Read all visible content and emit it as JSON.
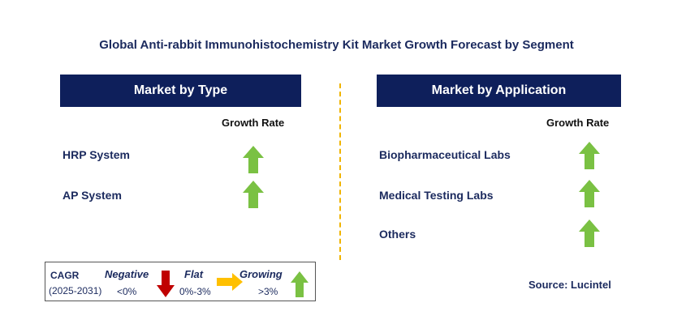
{
  "title": "Global Anti-rabbit Immunohistochemistry Kit Market Growth Forecast by Segment",
  "left_panel": {
    "header": "Market by Type",
    "growth_rate_label": "Growth Rate",
    "rows": [
      {
        "label": "HRP System",
        "trend": "growing"
      },
      {
        "label": "AP System",
        "trend": "growing"
      }
    ]
  },
  "right_panel": {
    "header": "Market by Application",
    "growth_rate_label": "Growth Rate",
    "rows": [
      {
        "label": "Biopharmaceutical Labs",
        "trend": "growing"
      },
      {
        "label": "Medical Testing Labs",
        "trend": "growing"
      },
      {
        "label": "Others",
        "trend": "growing"
      }
    ]
  },
  "legend": {
    "cagr": "CAGR",
    "period": "(2025-2031)",
    "negative": {
      "label": "Negative",
      "range": "<0%",
      "icon": "red-down-arrow-icon",
      "color": "#c00000"
    },
    "flat": {
      "label": "Flat",
      "range": "0%-3%",
      "icon": "yellow-right-arrow-icon",
      "color": "#ffc000"
    },
    "growing": {
      "label": "Growing",
      "range": ">3%",
      "icon": "green-up-arrow-icon",
      "color": "#7ac143"
    }
  },
  "source": "Source: Lucintel",
  "colors": {
    "header_bg": "#0e1f5b",
    "text": "#1b2a5e",
    "divider": "#f0b400",
    "arrow_up": "#7ac143"
  }
}
